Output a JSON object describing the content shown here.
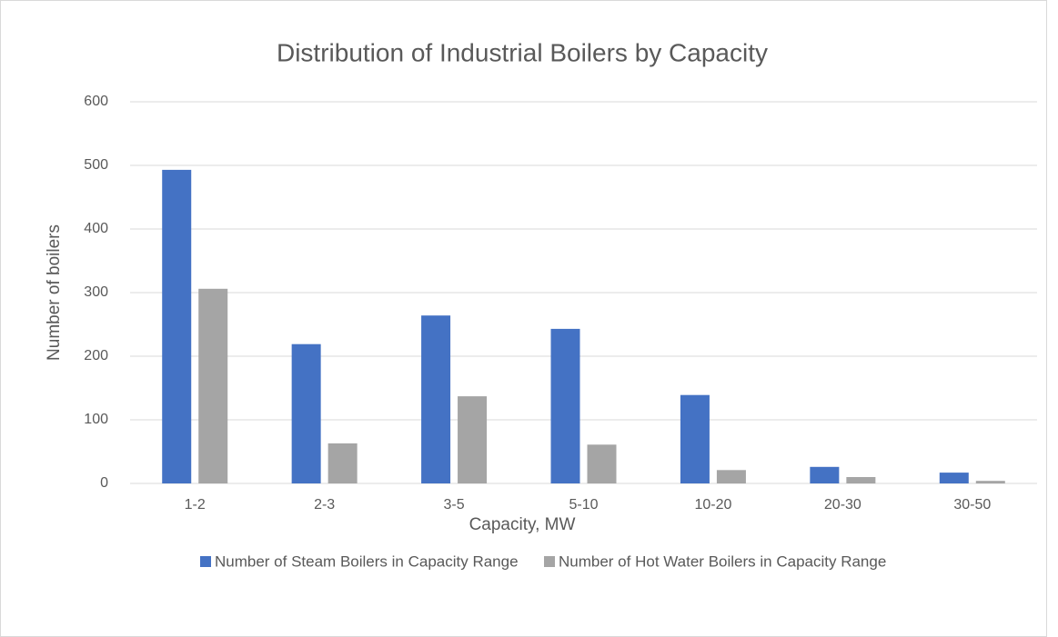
{
  "chart_data": {
    "type": "bar",
    "title": "Distribution of Industrial Boilers by Capacity",
    "x_label": "Capacity, MW",
    "y_label": "Number of boilers",
    "categories": [
      "1-2",
      "2-3",
      "3-5",
      "5-10",
      "10-20",
      "20-30",
      "30-50"
    ],
    "series": [
      {
        "name": "Number of Steam Boilers in Capacity Range",
        "color": "#4472c4",
        "values": [
          493,
          219,
          264,
          243,
          139,
          26,
          17
        ]
      },
      {
        "name": "Number of Hot Water Boilers in Capacity Range",
        "color": "#a5a5a5",
        "values": [
          306,
          63,
          137,
          61,
          21,
          10,
          4
        ]
      }
    ],
    "ylim": [
      0,
      600
    ],
    "yticks": [
      0,
      100,
      200,
      300,
      400,
      500,
      600
    ],
    "grid": true,
    "legend": "bottom"
  }
}
